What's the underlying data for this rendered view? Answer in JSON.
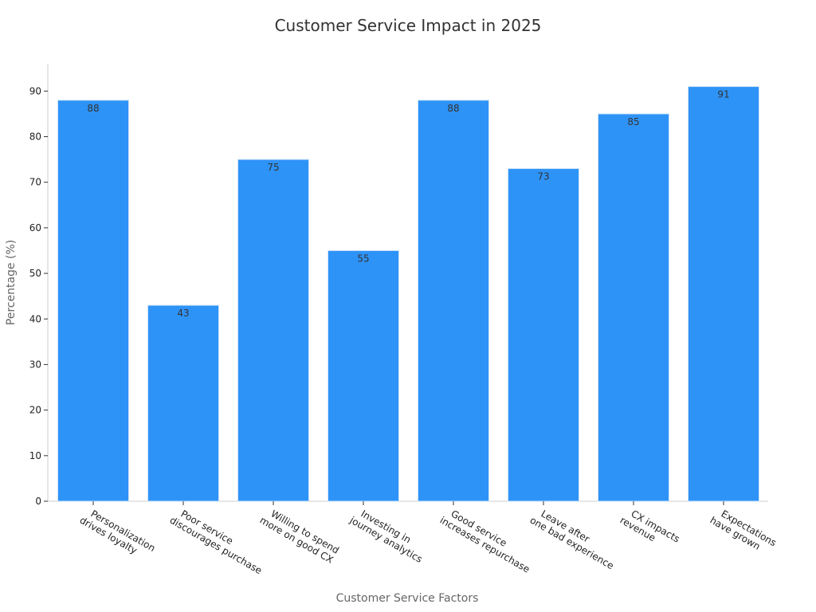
{
  "chart_data": {
    "type": "bar",
    "title": "Customer Service Impact in 2025",
    "xlabel": "Customer Service Factors",
    "ylabel": "Percentage (%)",
    "ylim": [
      0,
      96
    ],
    "yticks": [
      0,
      10,
      20,
      30,
      40,
      50,
      60,
      70,
      80,
      90
    ],
    "categories": [
      [
        "Personalization",
        "drives loyalty"
      ],
      [
        "Poor service",
        "discourages purchase"
      ],
      [
        "Willing to spend",
        "more on good CX"
      ],
      [
        "Investing in",
        "journey analytics"
      ],
      [
        "Good service",
        "increases repurchase"
      ],
      [
        "Leave after",
        "one bad experience"
      ],
      [
        "CX impacts",
        "revenue"
      ],
      [
        "Expectations",
        "have grown"
      ]
    ],
    "values": [
      88,
      43,
      75,
      55,
      88,
      73,
      85,
      91
    ],
    "data_labels": true,
    "grid": false,
    "colors": {
      "bar": "#2e93f7",
      "bar_edge": "#cfe3f7",
      "axis": "#cccccc"
    }
  }
}
